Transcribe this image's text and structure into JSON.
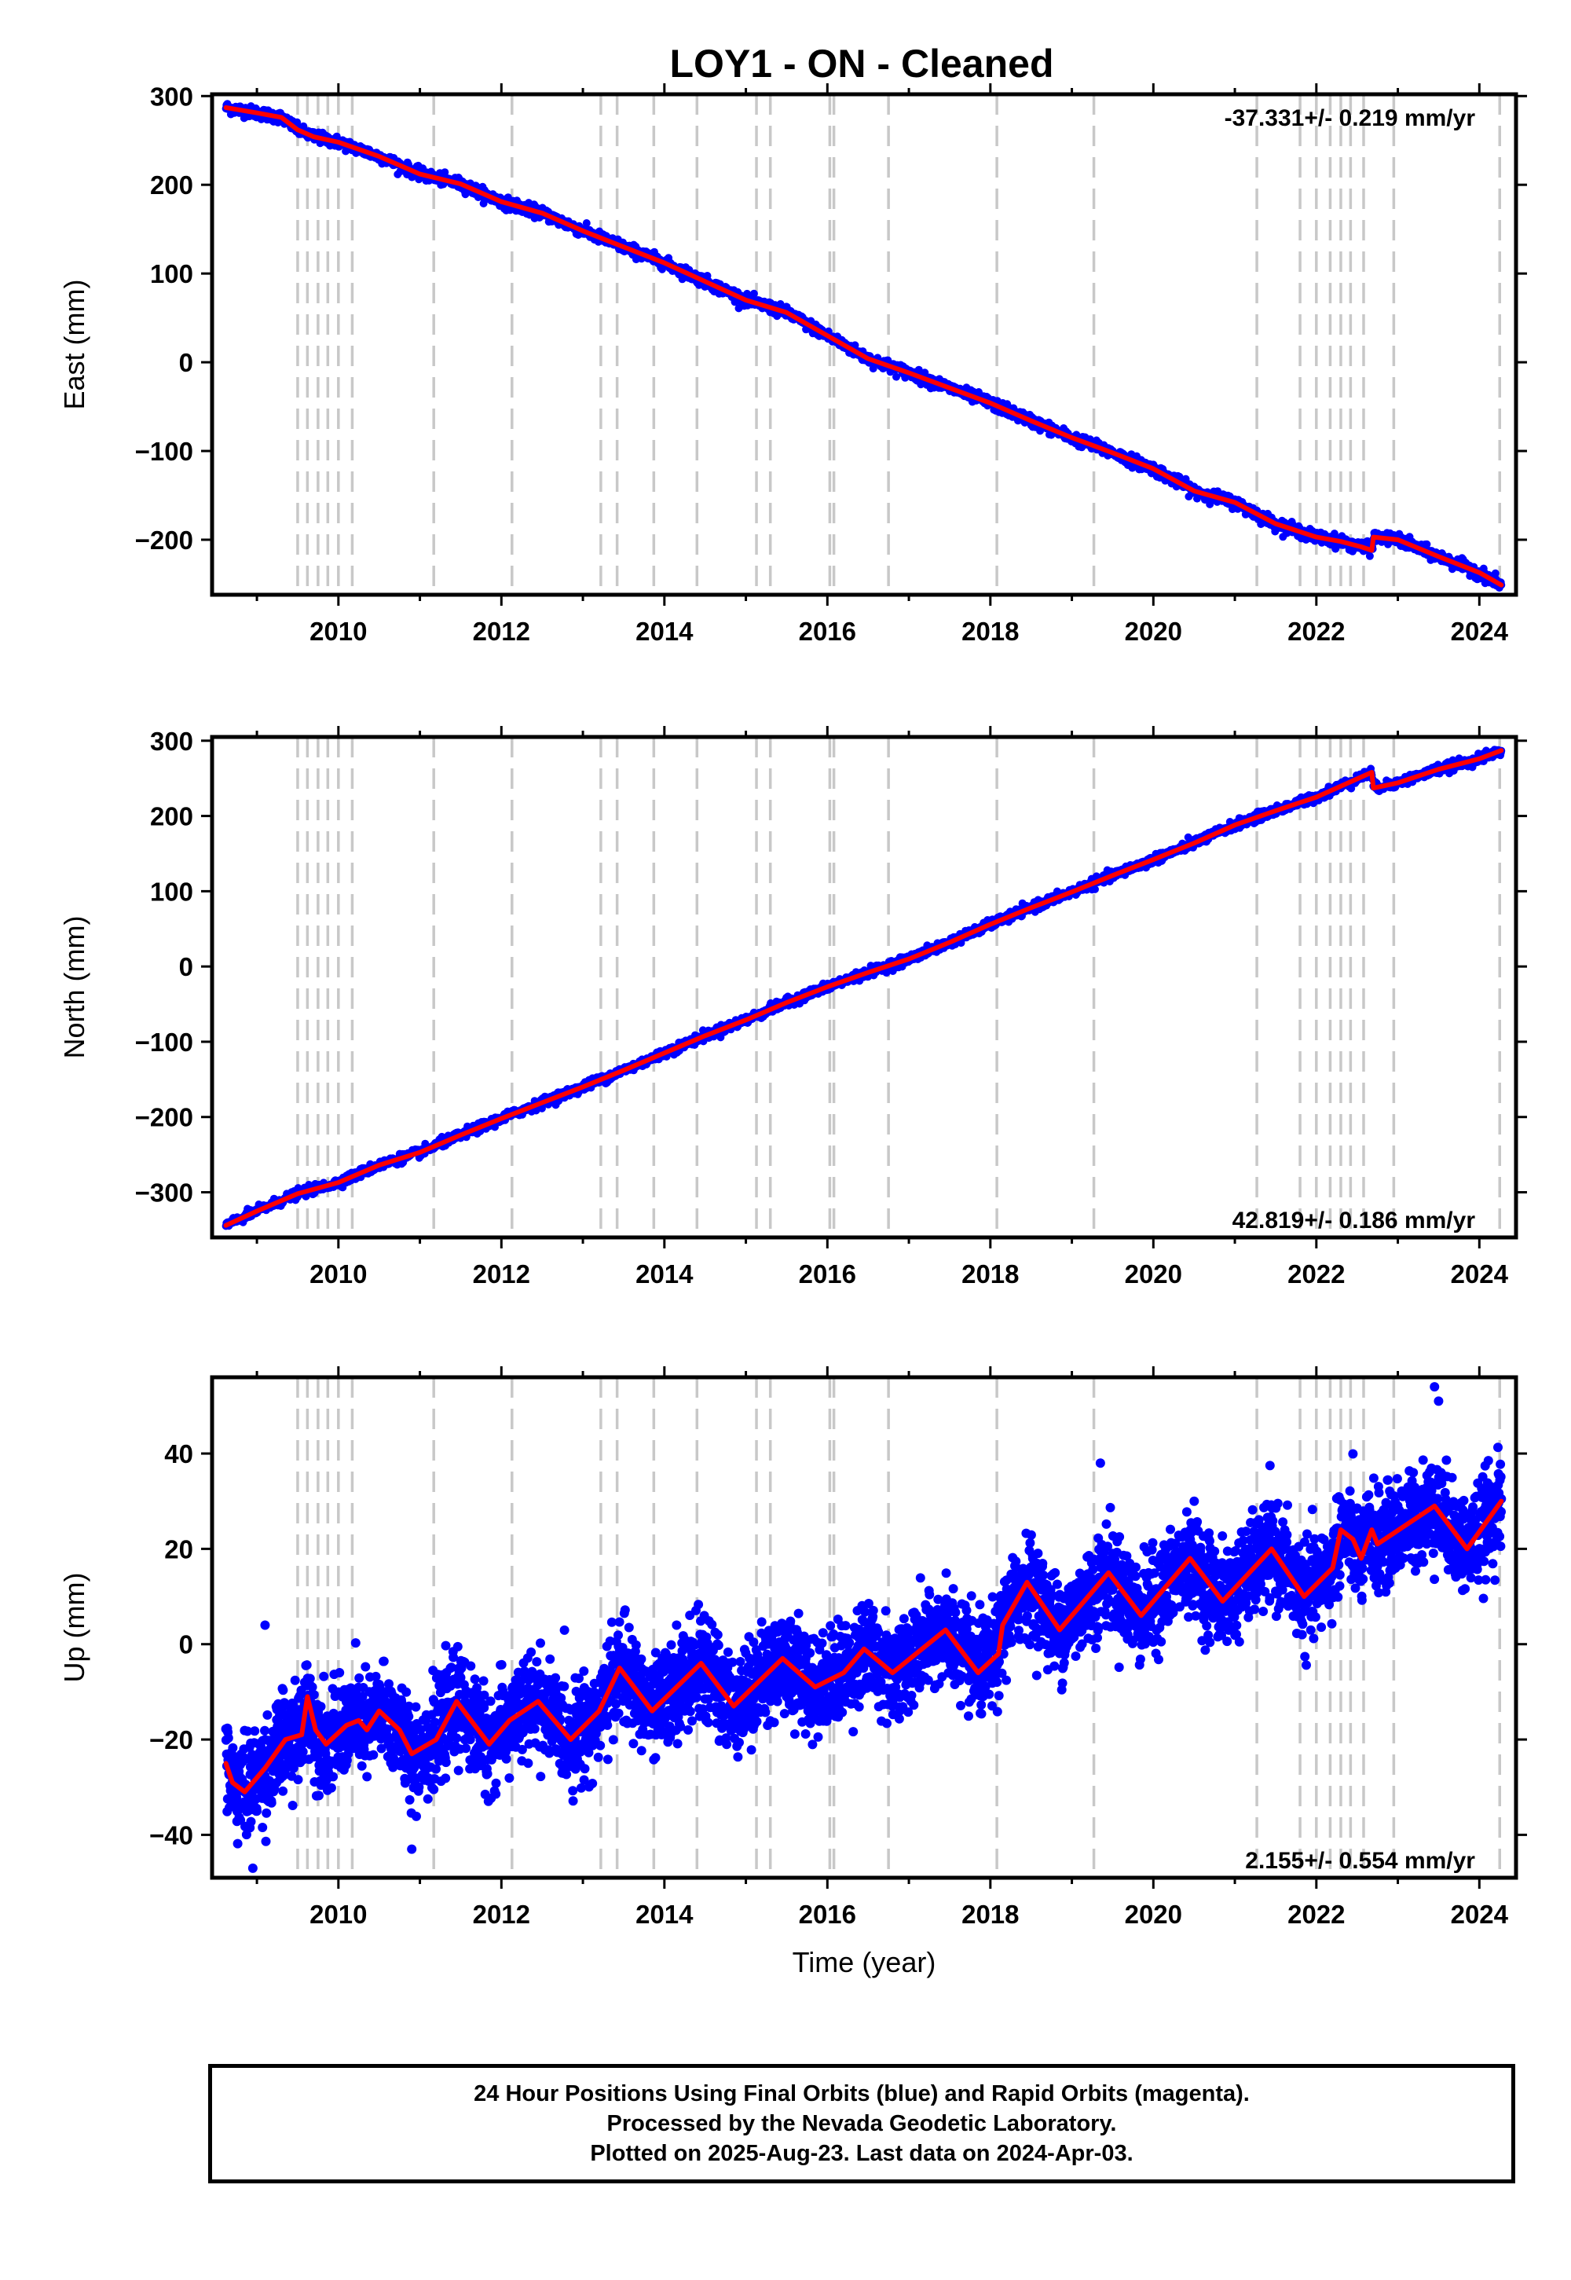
{
  "title": "LOY1  - ON - Cleaned",
  "colors": {
    "data": "#0000ff",
    "model": "#ff0000",
    "steps": "#c8c8c8",
    "frame": "#000000"
  },
  "chart_data": [
    {
      "type": "scatter",
      "name": "east",
      "ylabel": "East (mm)",
      "xlabel": "",
      "xlim": [
        2008.45,
        2024.45
      ],
      "ylim": [
        -262,
        302
      ],
      "yticks": [
        300,
        200,
        100,
        0,
        -100,
        -200
      ],
      "xticks": [
        2010,
        2012,
        2014,
        2016,
        2018,
        2020,
        2022,
        2024
      ],
      "rate_label": "-37.331+/- 0.219 mm/yr",
      "rate_position": "top-right",
      "model": {
        "x": [
          2008.62,
          2009.0,
          2009.3,
          2009.5,
          2009.7,
          2010.0,
          2010.5,
          2011.0,
          2011.5,
          2012.0,
          2012.5,
          2013.0,
          2013.5,
          2014.0,
          2014.5,
          2015.0,
          2015.5,
          2016.0,
          2016.5,
          2017.0,
          2017.5,
          2018.0,
          2018.5,
          2019.0,
          2019.5,
          2020.0,
          2020.5,
          2021.0,
          2021.5,
          2022.0,
          2022.3,
          2022.55,
          2022.68,
          2022.7,
          2023.0,
          2023.5,
          2024.0,
          2024.27
        ],
        "y": [
          287,
          281,
          276,
          262,
          254,
          248,
          232,
          212,
          201,
          181,
          168,
          148,
          130,
          112,
          91,
          70,
          56,
          30,
          4,
          -12,
          -29,
          -46,
          -66,
          -85,
          -102,
          -120,
          -145,
          -158,
          -182,
          -197,
          -202,
          -208,
          -212,
          -197,
          -200,
          -219,
          -237,
          -251
        ]
      },
      "steps": [
        2009.5,
        2009.62,
        2009.75,
        2009.87,
        2010.0,
        2010.17,
        2011.17,
        2012.13,
        2013.22,
        2013.42,
        2013.87,
        2014.4,
        2015.13,
        2015.3,
        2016.03,
        2016.08,
        2016.75,
        2018.08,
        2019.27,
        2021.27,
        2021.8,
        2022.0,
        2022.17,
        2022.3,
        2022.42,
        2022.58,
        2022.95,
        2024.25
      ]
    },
    {
      "type": "scatter",
      "name": "north",
      "ylabel": "North (mm)",
      "xlabel": "",
      "xlim": [
        2008.45,
        2024.45
      ],
      "ylim": [
        -360,
        305
      ],
      "yticks": [
        300,
        200,
        100,
        0,
        -100,
        -200,
        -300
      ],
      "xticks": [
        2010,
        2012,
        2014,
        2016,
        2018,
        2020,
        2022,
        2024
      ],
      "rate_label": "42.819+/- 0.186 mm/yr",
      "rate_position": "bottom-right",
      "model": {
        "x": [
          2008.62,
          2009.0,
          2009.5,
          2010.0,
          2010.5,
          2011.0,
          2011.5,
          2012.0,
          2012.5,
          2013.0,
          2013.5,
          2014.0,
          2014.5,
          2015.0,
          2015.5,
          2016.0,
          2016.5,
          2017.0,
          2017.5,
          2018.0,
          2018.5,
          2019.0,
          2019.5,
          2020.0,
          2020.5,
          2021.0,
          2021.5,
          2022.0,
          2022.68,
          2022.7,
          2023.0,
          2023.5,
          2024.0,
          2024.27
        ],
        "y": [
          -344,
          -325,
          -302,
          -287,
          -264,
          -247,
          -224,
          -202,
          -181,
          -160,
          -138,
          -115,
          -92,
          -71,
          -48,
          -27,
          -8,
          10,
          32,
          56,
          78,
          99,
          121,
          142,
          164,
          188,
          207,
          225,
          258,
          237,
          244,
          262,
          276,
          287
        ]
      },
      "steps": [
        2009.5,
        2009.62,
        2009.75,
        2009.87,
        2010.0,
        2010.17,
        2011.17,
        2012.13,
        2013.22,
        2013.42,
        2013.87,
        2014.4,
        2015.13,
        2015.3,
        2016.03,
        2016.08,
        2016.75,
        2018.08,
        2019.27,
        2021.27,
        2021.8,
        2022.0,
        2022.17,
        2022.3,
        2022.42,
        2022.58,
        2022.95,
        2024.25
      ]
    },
    {
      "type": "scatter",
      "name": "up",
      "ylabel": "Up (mm)",
      "xlabel": "Time (year)",
      "xlim": [
        2008.45,
        2024.45
      ],
      "ylim": [
        -49,
        56
      ],
      "yticks": [
        40,
        20,
        0,
        -20,
        -40
      ],
      "xticks": [
        2010,
        2012,
        2014,
        2016,
        2018,
        2020,
        2022,
        2024
      ],
      "rate_label": "2.155+/- 0.554 mm/yr",
      "rate_position": "bottom-right",
      "model": {
        "x": [
          2008.62,
          2008.7,
          2008.85,
          2009.1,
          2009.35,
          2009.55,
          2009.62,
          2009.72,
          2009.85,
          2010.1,
          2010.25,
          2010.35,
          2010.5,
          2010.75,
          2010.9,
          2011.2,
          2011.45,
          2011.85,
          2012.1,
          2012.45,
          2012.85,
          2013.2,
          2013.45,
          2013.85,
          2014.45,
          2014.85,
          2015.45,
          2015.85,
          2016.2,
          2016.45,
          2016.8,
          2017.45,
          2017.85,
          2018.1,
          2018.15,
          2018.45,
          2018.85,
          2019.45,
          2019.85,
          2020.45,
          2020.85,
          2021.45,
          2021.85,
          2022.2,
          2022.3,
          2022.45,
          2022.55,
          2022.68,
          2022.75,
          2023.45,
          2023.85,
          2024.27
        ],
        "y": [
          -25,
          -29,
          -31,
          -26,
          -20,
          -19,
          -11,
          -18,
          -21,
          -17,
          -16,
          -18,
          -14,
          -18,
          -23,
          -20,
          -12,
          -21,
          -16,
          -12,
          -20,
          -14,
          -5,
          -14,
          -4,
          -13,
          -3,
          -9,
          -6,
          -1,
          -6,
          3,
          -6,
          -2,
          4,
          13,
          3,
          15,
          6,
          18,
          9,
          20,
          10,
          16,
          24,
          22,
          18,
          24,
          21,
          29,
          20,
          30
        ]
      },
      "steps": [
        2009.5,
        2009.62,
        2009.75,
        2009.87,
        2010.0,
        2010.17,
        2011.17,
        2012.13,
        2013.22,
        2013.42,
        2013.87,
        2014.4,
        2015.13,
        2015.3,
        2016.03,
        2016.08,
        2016.75,
        2018.08,
        2019.27,
        2021.27,
        2021.8,
        2022.0,
        2022.17,
        2022.3,
        2022.42,
        2022.58,
        2022.95,
        2024.25
      ]
    }
  ],
  "footer": {
    "line1": "24 Hour Positions Using Final Orbits (blue) and Rapid Orbits (magenta).",
    "line2": "Processed by the Nevada Geodetic Laboratory.",
    "line3": "Plotted on 2025-Aug-23. Last data on 2024-Apr-03."
  }
}
